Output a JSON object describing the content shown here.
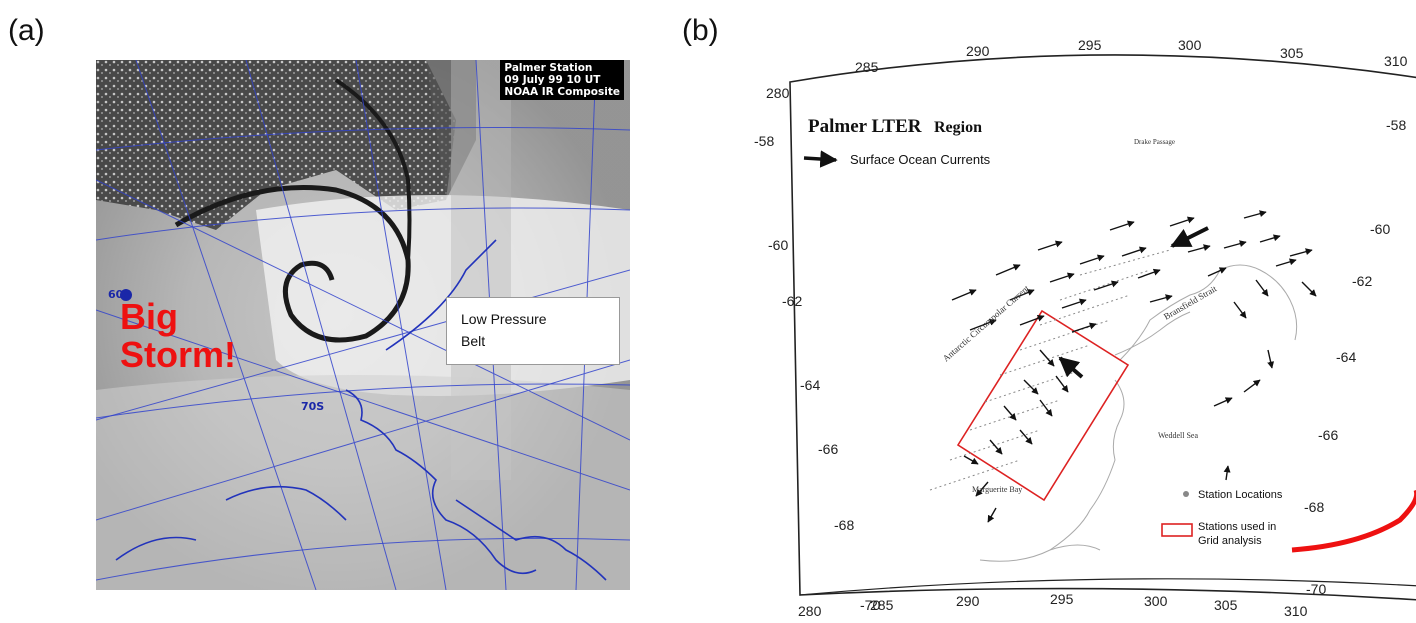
{
  "panel_a": {
    "label": "(a)",
    "stamp_line1": "Palmer Station",
    "stamp_line2": "09 July 99 10 UT",
    "stamp_line3": "NOAA IR Composite",
    "storm_line1": "Big",
    "storm_line2": "Storm!",
    "pressure_line1": "Low Pressure",
    "pressure_line2": "Belt",
    "graticule_label_1": "60S",
    "graticule_label_2": "70S",
    "colors": {
      "graticule": "#3344cc",
      "storm_text": "#ee1111",
      "storm_track": "#1a1a1a"
    }
  },
  "panel_b": {
    "label": "(b)",
    "title_main": "Palmer LTER",
    "title_region": "Region",
    "currents_legend": "Surface Ocean Currents",
    "lon_top": [
      "280",
      "285",
      "290",
      "295",
      "300",
      "305",
      "310"
    ],
    "lon_bottom": [
      "280",
      "285",
      "290",
      "295",
      "300",
      "305",
      "310"
    ],
    "lat_left": [
      "-58",
      "-60",
      "-62",
      "-64",
      "-66",
      "-68",
      "-70"
    ],
    "lat_right": [
      "-58",
      "-60",
      "-62",
      "-64",
      "-66",
      "-68",
      "-70"
    ],
    "drake_passage": "Drake Passage",
    "weddell_sea": "Weddell Sea",
    "acc_label": "Antarctic Circumpolar Current",
    "bransfield_label": "Bransfield Strait",
    "marguerite_label": "Marguerite Bay",
    "station_locations": "Station Locations",
    "stations_used_1": "Stations used in",
    "stations_used_2": "Grid analysis",
    "colors": {
      "grid_box": "#dd2222",
      "coast": "#aaaaaa",
      "arrow": "#111111",
      "curve": "#ee1111"
    }
  }
}
